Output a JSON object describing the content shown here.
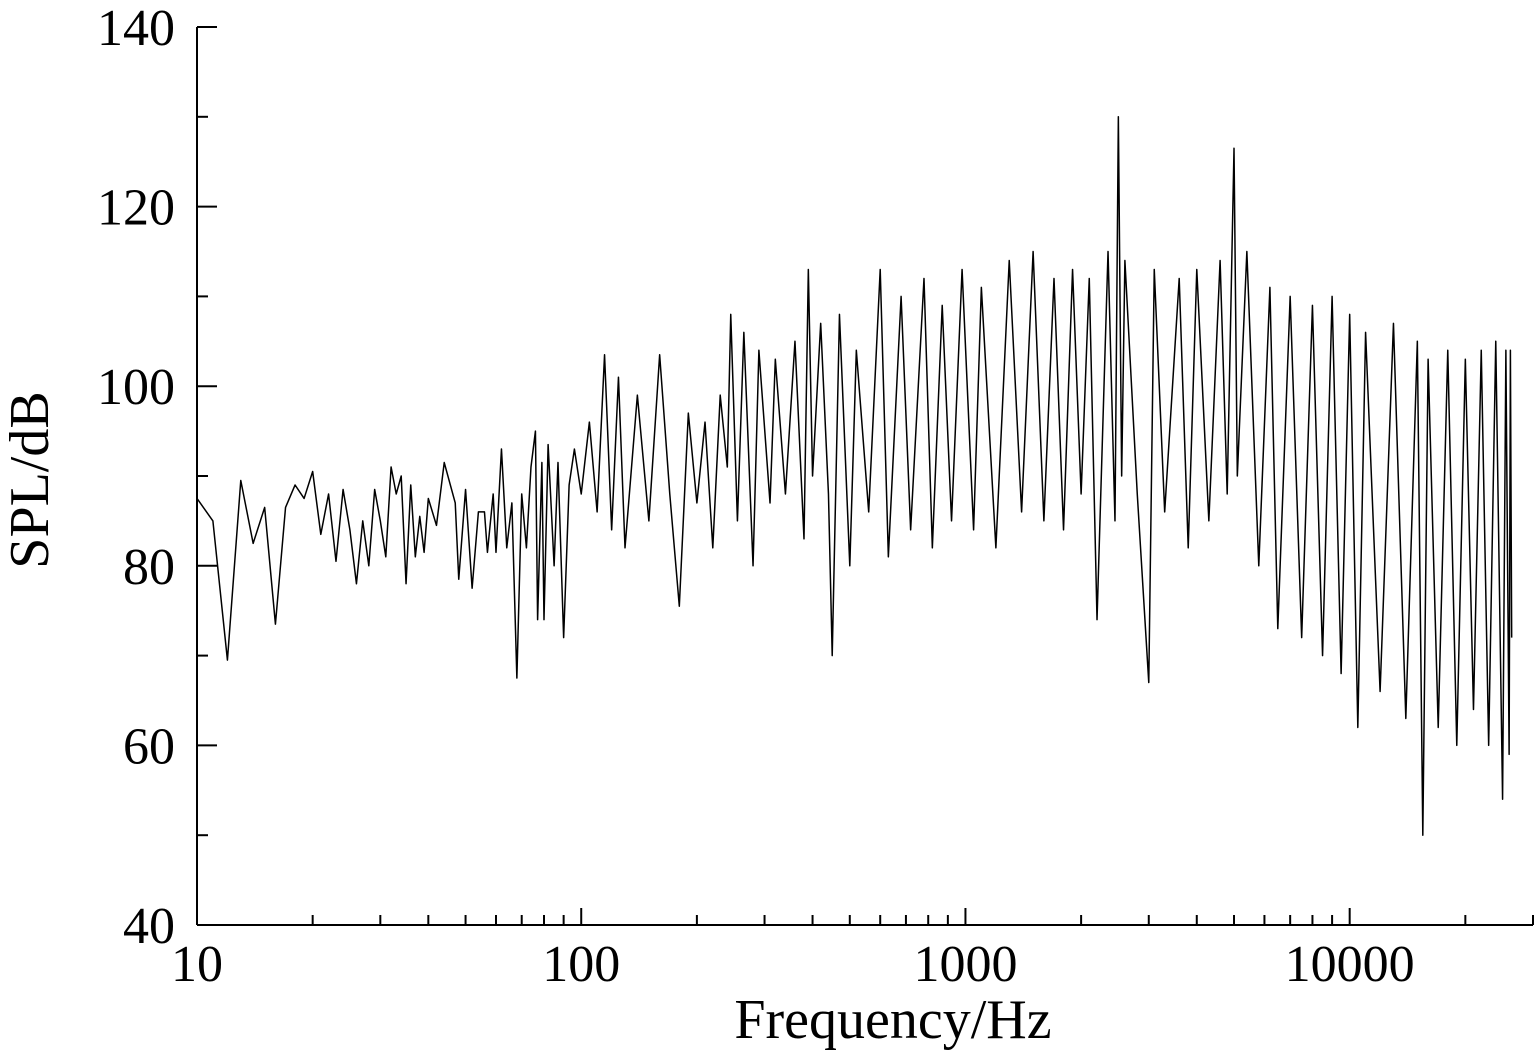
{
  "chart_data": {
    "type": "line",
    "xlabel": "Frequency/Hz",
    "ylabel": "SPL/dB",
    "xscale": "log",
    "color": "#000000",
    "xlim": [
      10,
      30000
    ],
    "ylim": [
      40,
      140
    ],
    "xticks": [
      10,
      100,
      1000,
      10000
    ],
    "xminorticks": [
      20,
      30,
      40,
      50,
      60,
      70,
      80,
      90,
      200,
      300,
      400,
      500,
      600,
      700,
      800,
      900,
      2000,
      3000,
      4000,
      5000,
      6000,
      7000,
      8000,
      9000,
      20000,
      30000
    ],
    "yticks": [
      40,
      60,
      80,
      100,
      120,
      140
    ],
    "yminorticks": [
      50,
      70,
      90,
      110,
      130
    ],
    "x": [
      10,
      11,
      12,
      13,
      14,
      15,
      16,
      17,
      18,
      19,
      20,
      21,
      22,
      23,
      24,
      25,
      26,
      27,
      28,
      29,
      30,
      31,
      32,
      33,
      34,
      35,
      36,
      37,
      38,
      39,
      40,
      42,
      44,
      47,
      48,
      50,
      52,
      54,
      56,
      57,
      59,
      60,
      62,
      64,
      66,
      68,
      70,
      72,
      74,
      76,
      77,
      79,
      80,
      82,
      85,
      87,
      90,
      93,
      96,
      100,
      105,
      110,
      115,
      120,
      125,
      130,
      140,
      150,
      160,
      170,
      180,
      190,
      200,
      210,
      220,
      230,
      240,
      245,
      255,
      265,
      280,
      290,
      310,
      320,
      340,
      360,
      380,
      390,
      400,
      420,
      440,
      450,
      470,
      500,
      520,
      560,
      600,
      630,
      680,
      720,
      780,
      820,
      870,
      920,
      980,
      1050,
      1100,
      1200,
      1300,
      1400,
      1500,
      1600,
      1700,
      1800,
      1900,
      2000,
      2100,
      2200,
      2350,
      2450,
      2500,
      2550,
      2600,
      2800,
      3000,
      3100,
      3300,
      3600,
      3800,
      4000,
      4300,
      4600,
      4800,
      5000,
      5100,
      5400,
      5800,
      6200,
      6500,
      7000,
      7500,
      8000,
      8500,
      9000,
      9500,
      10000,
      10500,
      11000,
      12000,
      13000,
      14000,
      15000,
      15500,
      16000,
      17000,
      18000,
      19000,
      20000,
      21000,
      22000,
      23000,
      24000,
      25000,
      25500,
      26000,
      26200,
      26400
    ],
    "values": [
      87.5,
      85,
      69.5,
      89.5,
      82.5,
      86.5,
      73.5,
      86.5,
      89,
      87.5,
      90.5,
      83.5,
      88,
      80.5,
      88.5,
      84,
      78,
      85,
      80,
      88.5,
      85,
      81,
      91,
      88,
      90,
      78,
      89,
      81,
      85.5,
      81.5,
      87.5,
      84.5,
      91.5,
      87,
      78.5,
      88.5,
      77.5,
      86,
      86,
      81.5,
      88,
      81.5,
      93,
      82,
      87,
      67.5,
      88,
      82,
      91,
      95,
      74,
      91.5,
      74,
      93.5,
      80,
      91.5,
      72,
      89,
      93,
      88,
      96,
      86,
      103.5,
      84,
      101,
      82,
      99,
      85,
      103.5,
      88,
      75.5,
      97,
      87,
      96,
      82,
      99,
      91,
      108,
      85,
      106,
      80,
      104,
      87,
      103,
      88,
      105,
      83,
      113,
      90,
      107,
      88,
      70,
      108,
      80,
      104,
      86,
      113,
      81,
      110,
      84,
      112,
      82,
      109,
      85,
      113,
      84,
      111,
      82,
      114,
      86,
      115,
      85,
      112,
      84,
      113,
      88,
      112,
      74,
      115,
      85,
      130,
      90,
      114,
      88,
      67,
      113,
      86,
      112,
      82,
      113,
      85,
      114,
      88,
      126.5,
      90,
      115,
      80,
      111,
      73,
      110,
      72,
      109,
      70,
      110,
      68,
      108,
      62,
      106,
      66,
      107,
      63,
      105,
      50,
      103,
      62,
      104,
      60,
      103,
      64,
      104,
      60,
      105,
      54,
      104,
      59,
      104,
      72
    ]
  }
}
